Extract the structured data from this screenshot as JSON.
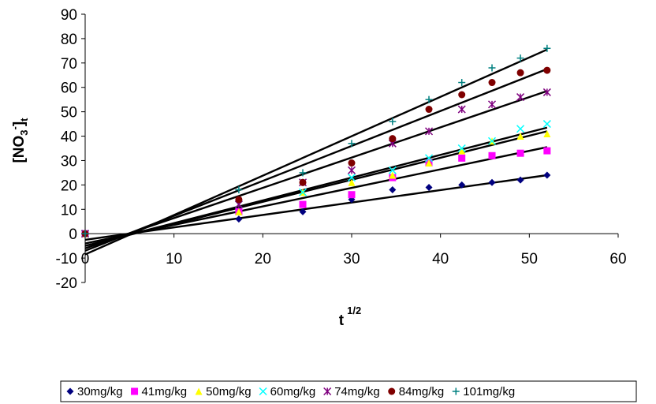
{
  "chart_data": {
    "type": "scatter",
    "title": "",
    "xlabel_main": "t",
    "xlabel_sup": "1/2",
    "ylabel_main": "[NO",
    "ylabel_sub": "3",
    "ylabel_sup": "-",
    "ylabel_end": "]",
    "ylabel_sub2": "t",
    "xlim": [
      0,
      60
    ],
    "ylim": [
      -20,
      90
    ],
    "xticks": [
      "0",
      "10",
      "20",
      "30",
      "40",
      "50",
      "60"
    ],
    "yticks": [
      "-20",
      "-10",
      "0",
      "10",
      "20",
      "30",
      "40",
      "50",
      "60",
      "70",
      "80",
      "90"
    ],
    "grid": false,
    "legend_position": "bottom",
    "x": [
      0,
      17.3,
      24.5,
      30,
      34.6,
      38.7,
      42.4,
      45.8,
      49,
      52
    ],
    "series": [
      {
        "name": "30mg/kg",
        "marker": "diamond",
        "color": "#00007f",
        "values": [
          0,
          6,
          9,
          14,
          18,
          19,
          20,
          21,
          22,
          24
        ],
        "fit": [
          -2.5,
          24
        ]
      },
      {
        "name": "41mg/kg",
        "marker": "square",
        "color": "#ff00ff",
        "values": [
          0,
          9,
          12,
          16,
          23,
          29,
          31,
          32,
          33,
          34
        ],
        "fit": [
          -4,
          35.5
        ]
      },
      {
        "name": "50mg/kg",
        "marker": "triangle",
        "color": "#ffff00",
        "values": [
          0,
          9,
          17,
          21,
          24,
          29,
          34,
          38,
          40,
          41
        ],
        "fit": [
          -5,
          42
        ]
      },
      {
        "name": "60mg/kg",
        "marker": "x",
        "color": "#00ffff",
        "values": [
          0,
          12,
          17,
          23,
          26,
          31,
          35,
          38,
          43,
          45
        ],
        "fit": [
          -5,
          43.5
        ]
      },
      {
        "name": "74mg/kg",
        "marker": "star",
        "color": "#7f007f",
        "values": [
          0,
          12,
          21,
          26,
          37,
          42,
          51,
          53,
          56,
          58
        ],
        "fit": [
          -6,
          58.5
        ]
      },
      {
        "name": "84mg/kg",
        "marker": "circle",
        "color": "#7f0000",
        "values": [
          0,
          14,
          21,
          29,
          39,
          51,
          57,
          62,
          66,
          67
        ],
        "fit": [
          -7,
          67.5
        ]
      },
      {
        "name": "101mg/kg",
        "marker": "plus",
        "color": "#008080",
        "values": [
          0,
          18,
          25,
          37,
          46,
          55,
          62,
          68,
          72,
          76
        ],
        "fit": [
          -8.5,
          75.5
        ]
      }
    ]
  }
}
